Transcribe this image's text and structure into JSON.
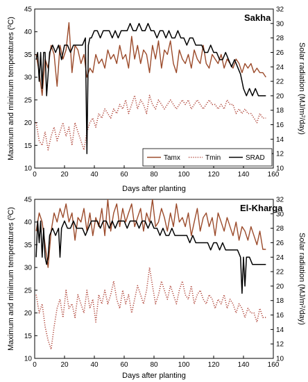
{
  "colors": {
    "tmax": "#9b4a2a",
    "tmin": "#b0463a",
    "srad": "#000000",
    "axis": "#000000"
  },
  "chart_data": [
    {
      "type": "line",
      "title": "Sakha",
      "xlabel": "Days after planting",
      "ylabel": "Maximum and minimum temperatures (°C)",
      "ylabel_parts": [
        "Maximum and minimum temperatures (",
        "0",
        "C)"
      ],
      "y2label": "Solar radiation (MJ/m²/day)",
      "y2label_parts": [
        "Solar radiation (MJ/m",
        "2",
        "/day)"
      ],
      "xlim": [
        0,
        160
      ],
      "ylim": [
        10,
        45
      ],
      "y2lim": [
        10,
        32
      ],
      "xticks": [
        0,
        20,
        40,
        60,
        80,
        100,
        120,
        140,
        160
      ],
      "yticks": [
        10,
        15,
        20,
        25,
        30,
        35,
        40,
        45
      ],
      "y2ticks": [
        10,
        12,
        14,
        16,
        18,
        20,
        22,
        24,
        26,
        28,
        30,
        32
      ],
      "legend": {
        "position": "bottom-right",
        "entries": [
          "Tamx",
          "Tmin",
          "SRAD"
        ]
      },
      "series": [
        {
          "name": "Tamx",
          "axis": "left",
          "style": "solid",
          "x": [
            1,
            3,
            5,
            7,
            9,
            11,
            13,
            15,
            17,
            19,
            21,
            23,
            25,
            27,
            29,
            31,
            33,
            35,
            37,
            39,
            41,
            43,
            45,
            47,
            49,
            51,
            53,
            55,
            57,
            59,
            61,
            63,
            65,
            67,
            69,
            71,
            73,
            75,
            77,
            79,
            81,
            83,
            85,
            87,
            89,
            91,
            93,
            95,
            97,
            99,
            101,
            103,
            105,
            107,
            109,
            111,
            113,
            115,
            117,
            119,
            121,
            123,
            125,
            127,
            129,
            131,
            133,
            135,
            137,
            139,
            141,
            143,
            145,
            147,
            149,
            151,
            153,
            155
          ],
          "y": [
            35,
            31,
            26,
            34,
            32,
            37,
            35,
            28,
            37,
            34,
            36,
            42,
            31,
            37,
            36,
            33,
            35,
            30,
            32,
            31,
            35,
            33,
            34,
            32,
            36,
            34,
            35,
            33,
            37,
            34,
            35,
            32,
            39,
            34,
            37,
            33,
            36,
            35,
            31,
            37,
            34,
            38,
            32,
            36,
            35,
            38,
            33,
            31,
            36,
            34,
            33,
            35,
            32,
            36,
            34,
            33,
            37,
            33,
            32,
            35,
            34,
            33,
            35,
            32,
            34,
            33,
            32,
            34,
            33,
            31,
            33,
            32,
            33,
            31,
            32,
            31,
            31,
            30
          ]
        },
        {
          "name": "Tmin",
          "axis": "left",
          "style": "dotted",
          "x": [
            1,
            3,
            5,
            7,
            9,
            11,
            13,
            15,
            17,
            19,
            21,
            23,
            25,
            27,
            29,
            31,
            33,
            35,
            37,
            39,
            41,
            43,
            45,
            47,
            49,
            51,
            53,
            55,
            57,
            59,
            61,
            63,
            65,
            67,
            69,
            71,
            73,
            75,
            77,
            79,
            81,
            83,
            85,
            87,
            89,
            91,
            93,
            95,
            97,
            99,
            101,
            103,
            105,
            107,
            109,
            111,
            113,
            115,
            117,
            119,
            121,
            123,
            125,
            127,
            129,
            131,
            133,
            135,
            137,
            139,
            141,
            143,
            145,
            147,
            149,
            151,
            153,
            155
          ],
          "y": [
            20,
            16,
            15,
            18,
            14,
            17,
            19,
            16,
            18,
            20,
            17,
            19,
            15,
            20,
            18,
            16,
            14,
            18,
            20,
            21,
            19,
            22,
            21,
            23,
            22,
            21,
            23,
            22,
            24,
            23,
            25,
            22,
            24,
            26,
            23,
            25,
            24,
            22,
            26,
            24,
            23,
            25,
            24,
            23,
            24,
            25,
            24,
            23,
            24,
            25,
            24,
            25,
            23,
            24,
            25,
            24,
            23,
            24,
            25,
            24,
            24,
            23,
            24,
            23,
            25,
            24,
            24,
            22,
            23,
            22,
            23,
            22,
            22,
            21,
            20,
            22,
            21,
            21
          ]
        },
        {
          "name": "SRAD",
          "axis": "right",
          "style": "solid",
          "x": [
            1,
            2,
            3,
            4,
            5,
            6,
            7,
            8,
            10,
            12,
            14,
            16,
            18,
            20,
            22,
            24,
            26,
            28,
            30,
            32,
            34,
            35,
            36,
            37,
            38,
            40,
            42,
            44,
            46,
            48,
            50,
            52,
            54,
            56,
            58,
            60,
            62,
            64,
            66,
            68,
            70,
            72,
            74,
            76,
            78,
            80,
            82,
            84,
            86,
            88,
            90,
            92,
            94,
            96,
            98,
            100,
            102,
            104,
            106,
            108,
            110,
            112,
            114,
            116,
            118,
            120,
            122,
            124,
            126,
            128,
            130,
            132,
            134,
            136,
            138,
            139,
            140,
            142,
            144,
            146,
            148,
            150,
            152,
            154,
            155
          ],
          "y": [
            25,
            26,
            22,
            26,
            21,
            26,
            26,
            20,
            26,
            27,
            26,
            27,
            25,
            27,
            27,
            26,
            27,
            27,
            27,
            27,
            28,
            12,
            27,
            28,
            28,
            29,
            29,
            28,
            29,
            29,
            29,
            28,
            29,
            28,
            29,
            29,
            29,
            30,
            29,
            29,
            30,
            29,
            29,
            30,
            29,
            29,
            28,
            29,
            29,
            28,
            29,
            28,
            28,
            29,
            28,
            28,
            27,
            28,
            28,
            27,
            27,
            27,
            26,
            26,
            27,
            26,
            26,
            25,
            25,
            26,
            25,
            24,
            25,
            24,
            23,
            22,
            21,
            20,
            21,
            20,
            21,
            20,
            20,
            20,
            20
          ]
        }
      ]
    },
    {
      "type": "line",
      "title": "El-Kharga",
      "xlabel": "Days after planting",
      "ylabel": "Maximum and minimum temperatures (°C)",
      "ylabel_parts": [
        "Maximum and minimum temperatures (",
        "0",
        "C)"
      ],
      "y2label": "Solar radiation (MJ/m²/day)",
      "y2label_parts": [
        "Solar radiation (MJ/m",
        "2",
        "/day)"
      ],
      "xlim": [
        0,
        160
      ],
      "ylim": [
        10,
        45
      ],
      "y2lim": [
        10,
        32
      ],
      "xticks": [
        0,
        20,
        40,
        60,
        80,
        100,
        120,
        140,
        160
      ],
      "yticks": [
        10,
        15,
        20,
        25,
        30,
        35,
        40,
        45
      ],
      "y2ticks": [
        10,
        12,
        14,
        16,
        18,
        20,
        22,
        24,
        26,
        28,
        30,
        32
      ],
      "series": [
        {
          "name": "Tamx",
          "axis": "left",
          "style": "solid",
          "x": [
            1,
            3,
            5,
            7,
            9,
            11,
            13,
            15,
            17,
            19,
            21,
            23,
            25,
            27,
            29,
            31,
            33,
            35,
            37,
            39,
            41,
            43,
            45,
            47,
            49,
            51,
            53,
            55,
            57,
            59,
            61,
            63,
            65,
            67,
            69,
            71,
            73,
            75,
            77,
            79,
            81,
            83,
            85,
            87,
            89,
            91,
            93,
            95,
            97,
            99,
            101,
            103,
            105,
            107,
            109,
            111,
            113,
            115,
            117,
            119,
            121,
            123,
            125,
            127,
            129,
            131,
            133,
            135,
            137,
            139,
            141,
            143,
            145,
            147,
            149,
            151,
            153,
            155
          ],
          "y": [
            38,
            42,
            40,
            35,
            30,
            38,
            42,
            40,
            43,
            41,
            44,
            40,
            42,
            36,
            41,
            40,
            43,
            38,
            42,
            37,
            41,
            39,
            43,
            37,
            45,
            38,
            42,
            44,
            39,
            43,
            40,
            42,
            44,
            39,
            41,
            43,
            38,
            42,
            40,
            45,
            39,
            40,
            43,
            41,
            38,
            42,
            39,
            44,
            40,
            41,
            39,
            42,
            37,
            40,
            43,
            38,
            41,
            42,
            39,
            41,
            37,
            42,
            40,
            38,
            41,
            39,
            37,
            40,
            36,
            39,
            38,
            36,
            39,
            37,
            35,
            38,
            34,
            34
          ]
        },
        {
          "name": "Tmin",
          "axis": "left",
          "style": "dotted",
          "x": [
            1,
            3,
            5,
            7,
            9,
            11,
            13,
            15,
            17,
            19,
            21,
            23,
            25,
            27,
            29,
            31,
            33,
            35,
            37,
            39,
            41,
            43,
            45,
            47,
            49,
            51,
            53,
            55,
            57,
            59,
            61,
            63,
            65,
            67,
            69,
            71,
            73,
            75,
            77,
            79,
            81,
            83,
            85,
            87,
            89,
            91,
            93,
            95,
            97,
            99,
            101,
            103,
            105,
            107,
            109,
            111,
            113,
            115,
            117,
            119,
            121,
            123,
            125,
            127,
            129,
            131,
            133,
            135,
            137,
            139,
            141,
            143,
            145,
            147,
            149,
            151,
            153,
            155
          ],
          "y": [
            24,
            20,
            22,
            17,
            14,
            12,
            17,
            21,
            23,
            19,
            25,
            21,
            22,
            19,
            24,
            22,
            20,
            25,
            21,
            23,
            18,
            24,
            22,
            25,
            22,
            24,
            27,
            23,
            21,
            25,
            22,
            24,
            20,
            23,
            26,
            24,
            22,
            25,
            30,
            26,
            22,
            24,
            27,
            25,
            23,
            26,
            24,
            22,
            25,
            27,
            24,
            23,
            26,
            22,
            24,
            25,
            23,
            22,
            24,
            23,
            21,
            23,
            22,
            24,
            21,
            23,
            22,
            20,
            22,
            21,
            19,
            21,
            20,
            20,
            18,
            21,
            19,
            19
          ]
        },
        {
          "name": "SRAD",
          "axis": "right",
          "style": "solid",
          "x": [
            1,
            2,
            3,
            4,
            5,
            6,
            7,
            8,
            9,
            10,
            12,
            14,
            16,
            17,
            18,
            20,
            22,
            24,
            26,
            28,
            30,
            32,
            34,
            36,
            38,
            40,
            42,
            44,
            46,
            48,
            50,
            52,
            54,
            56,
            58,
            60,
            62,
            64,
            66,
            68,
            70,
            72,
            74,
            76,
            78,
            80,
            82,
            84,
            86,
            88,
            90,
            92,
            94,
            96,
            98,
            100,
            102,
            104,
            106,
            108,
            110,
            112,
            114,
            116,
            118,
            120,
            122,
            124,
            126,
            128,
            130,
            132,
            134,
            136,
            138,
            139,
            140,
            141,
            142,
            144,
            146,
            148,
            150,
            152,
            154,
            155
          ],
          "y": [
            24,
            29,
            26,
            29,
            24,
            28,
            24,
            23,
            24,
            27,
            28,
            27,
            28,
            24,
            28,
            29,
            28,
            28,
            29,
            28,
            28,
            28,
            27,
            28,
            29,
            29,
            29,
            28,
            29,
            29,
            28,
            29,
            28,
            29,
            29,
            29,
            28,
            29,
            29,
            29,
            28,
            29,
            29,
            28,
            29,
            28,
            28,
            27,
            28,
            27,
            27,
            28,
            27,
            27,
            27,
            27,
            27,
            26,
            27,
            26,
            26,
            26,
            26,
            26,
            25,
            26,
            26,
            25,
            26,
            25,
            25,
            25,
            25,
            25,
            24,
            19,
            24,
            20,
            24,
            24,
            23,
            23,
            23,
            23,
            23,
            23
          ]
        }
      ]
    }
  ]
}
